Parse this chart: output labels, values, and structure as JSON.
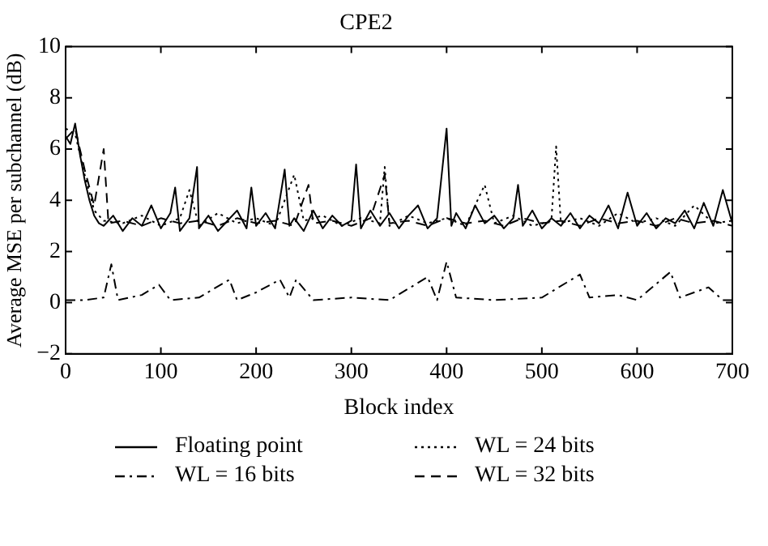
{
  "chart_data": {
    "type": "line",
    "title": "CPE2",
    "xlabel": "Block index",
    "ylabel": "Average MSE per subchannel (dB)",
    "xlim": [
      0,
      700
    ],
    "xticks": [
      0,
      100,
      200,
      300,
      400,
      500,
      600,
      700
    ],
    "ylim": [
      -2,
      10
    ],
    "yticks": [
      -2,
      0,
      2,
      4,
      6,
      8,
      10
    ],
    "grid": false,
    "legend": "bottom",
    "marker": "none",
    "series": [
      {
        "name": "Floating point",
        "color": "#000000",
        "line_style": "solid",
        "x": [
          0,
          5,
          10,
          15,
          20,
          25,
          30,
          35,
          40,
          50,
          60,
          70,
          80,
          90,
          100,
          110,
          115,
          120,
          130,
          138,
          140,
          150,
          160,
          170,
          180,
          190,
          195,
          200,
          210,
          220,
          230,
          235,
          240,
          250,
          260,
          270,
          280,
          290,
          300,
          305,
          310,
          320,
          330,
          340,
          350,
          360,
          370,
          380,
          390,
          400,
          405,
          410,
          420,
          430,
          440,
          450,
          460,
          470,
          475,
          480,
          490,
          500,
          510,
          520,
          530,
          540,
          550,
          560,
          570,
          580,
          590,
          600,
          610,
          620,
          630,
          640,
          650,
          660,
          670,
          680,
          690,
          700
        ],
        "values": [
          6.5,
          6.2,
          7.0,
          5.8,
          4.8,
          4.0,
          3.4,
          3.1,
          3.0,
          3.4,
          2.8,
          3.3,
          3.0,
          3.8,
          2.9,
          3.5,
          4.5,
          2.8,
          3.3,
          5.3,
          2.9,
          3.4,
          2.8,
          3.2,
          3.6,
          2.9,
          4.5,
          3.0,
          3.5,
          2.9,
          5.2,
          3.0,
          3.3,
          2.8,
          3.6,
          2.9,
          3.4,
          3.0,
          3.2,
          5.4,
          2.9,
          3.6,
          3.0,
          3.5,
          2.9,
          3.4,
          3.8,
          2.9,
          3.3,
          6.8,
          3.0,
          3.5,
          2.9,
          3.8,
          3.1,
          3.4,
          2.9,
          3.3,
          4.6,
          3.0,
          3.6,
          2.9,
          3.3,
          3.0,
          3.5,
          2.9,
          3.4,
          3.1,
          3.8,
          2.9,
          4.3,
          3.0,
          3.5,
          2.9,
          3.3,
          3.1,
          3.6,
          2.9,
          3.9,
          3.0,
          4.4,
          3.1
        ]
      },
      {
        "name": "WL = 16 bits",
        "color": "#000000",
        "line_style": "dashdot",
        "x": [
          0,
          20,
          40,
          48,
          55,
          80,
          98,
          110,
          140,
          172,
          180,
          200,
          225,
          235,
          242,
          260,
          300,
          340,
          380,
          390,
          400,
          410,
          450,
          500,
          540,
          550,
          580,
          600,
          635,
          645,
          675,
          690,
          700
        ],
        "values": [
          0.1,
          0.1,
          0.2,
          1.5,
          0.1,
          0.3,
          0.7,
          0.1,
          0.2,
          0.9,
          0.1,
          0.4,
          0.9,
          0.2,
          0.9,
          0.1,
          0.2,
          0.1,
          1.0,
          0.1,
          1.6,
          0.2,
          0.1,
          0.2,
          1.1,
          0.2,
          0.3,
          0.1,
          1.2,
          0.2,
          0.6,
          0.1,
          0.1
        ]
      },
      {
        "name": "WL = 24 bits",
        "color": "#000000",
        "line_style": "dotted",
        "x": [
          0,
          10,
          20,
          30,
          40,
          60,
          80,
          100,
          120,
          130,
          140,
          160,
          180,
          200,
          220,
          240,
          250,
          270,
          290,
          310,
          330,
          335,
          340,
          360,
          380,
          400,
          420,
          440,
          450,
          470,
          490,
          510,
          515,
          520,
          540,
          560,
          580,
          600,
          620,
          640,
          660,
          680,
          700
        ],
        "values": [
          6.8,
          6.6,
          5.0,
          3.6,
          3.2,
          3.1,
          3.4,
          3.0,
          3.3,
          4.4,
          3.0,
          3.5,
          3.1,
          3.3,
          3.0,
          5.0,
          3.2,
          3.4,
          3.0,
          3.3,
          3.1,
          5.3,
          3.0,
          3.4,
          3.1,
          3.3,
          3.0,
          4.6,
          3.1,
          3.4,
          3.0,
          3.2,
          6.1,
          3.1,
          3.3,
          3.0,
          3.5,
          3.1,
          3.3,
          3.0,
          3.8,
          3.1,
          3.2
        ]
      },
      {
        "name": "WL = 32 bits",
        "color": "#000000",
        "line_style": "dashed",
        "x": [
          0,
          10,
          20,
          30,
          40,
          45,
          60,
          80,
          100,
          120,
          140,
          160,
          180,
          200,
          220,
          240,
          255,
          260,
          280,
          300,
          320,
          335,
          340,
          360,
          380,
          400,
          420,
          440,
          460,
          480,
          500,
          520,
          540,
          560,
          580,
          600,
          620,
          640,
          660,
          680,
          700
        ],
        "values": [
          6.4,
          6.8,
          5.2,
          3.8,
          6.0,
          3.1,
          3.2,
          3.0,
          3.3,
          3.1,
          3.2,
          3.0,
          3.3,
          3.1,
          3.2,
          3.0,
          4.6,
          3.1,
          3.2,
          3.0,
          3.3,
          5.0,
          3.1,
          3.2,
          3.0,
          3.3,
          3.1,
          3.2,
          3.0,
          3.3,
          3.1,
          3.2,
          3.0,
          3.3,
          3.1,
          3.2,
          3.0,
          3.3,
          3.1,
          3.2,
          3.0
        ]
      }
    ]
  }
}
